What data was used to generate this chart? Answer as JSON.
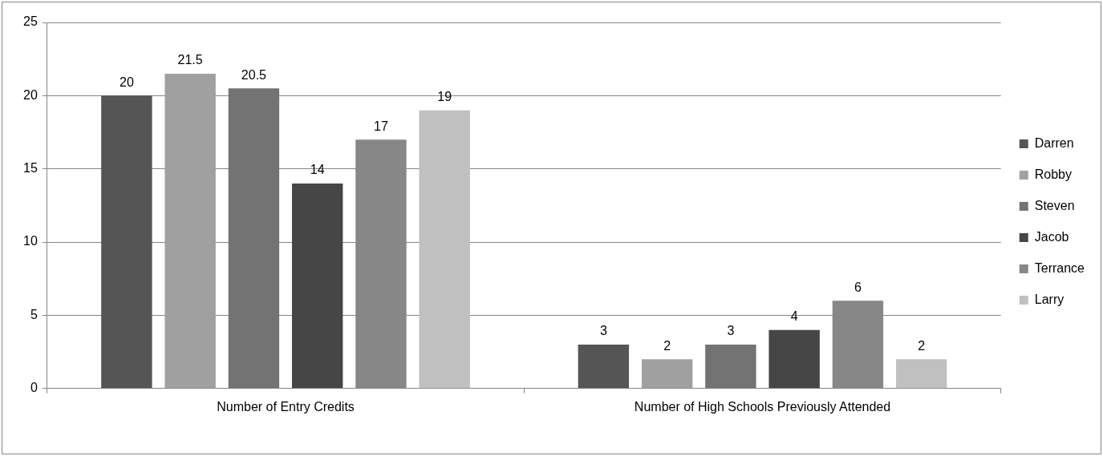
{
  "chart_data": {
    "type": "bar",
    "categories": [
      "Number of Entry Credits",
      "Number of High Schools Previously Attended"
    ],
    "series": [
      {
        "name": "Darren",
        "color": "#555555",
        "values": [
          20,
          3
        ]
      },
      {
        "name": "Robby",
        "color": "#a0a0a0",
        "values": [
          21.5,
          2
        ]
      },
      {
        "name": "Steven",
        "color": "#737373",
        "values": [
          20.5,
          3
        ]
      },
      {
        "name": "Jacob",
        "color": "#464646",
        "values": [
          14,
          4
        ]
      },
      {
        "name": "Terrance",
        "color": "#878787",
        "values": [
          17,
          6
        ]
      },
      {
        "name": "Larry",
        "color": "#c0c0c0",
        "values": [
          19,
          2
        ]
      }
    ],
    "ylim": [
      0,
      25
    ],
    "yticks": [
      0,
      5,
      10,
      15,
      20,
      25
    ],
    "grid": "y",
    "legend": "right",
    "data_labels": true
  }
}
